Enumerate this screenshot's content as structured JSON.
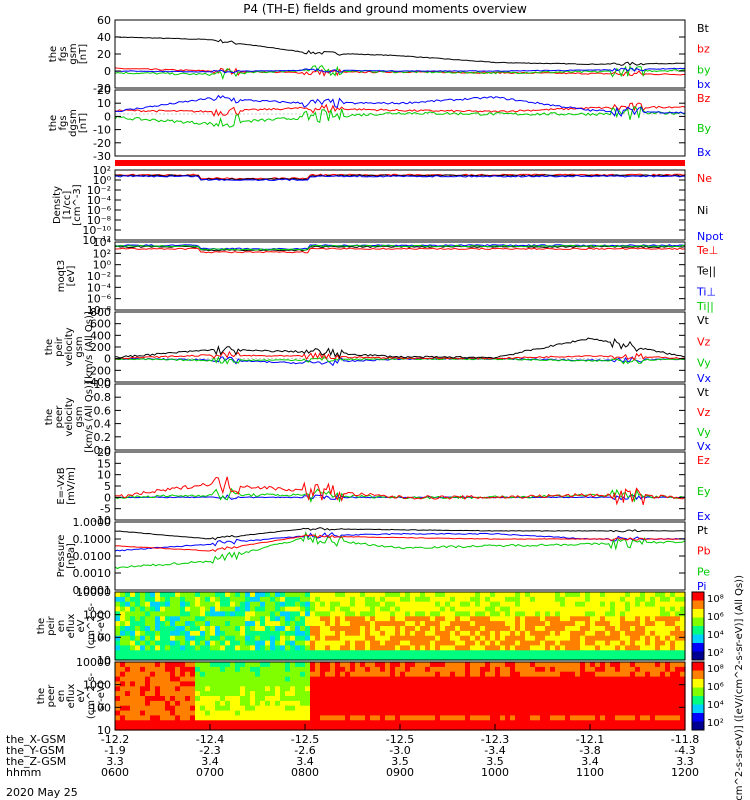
{
  "title": "P4 (TH-E) fields and ground moments overview",
  "footer": {
    "date": "2020 May 25",
    "row_labels": [
      "the_X-GSM",
      "the_Y-GSM",
      "the_Z-GSM",
      "hhmm"
    ],
    "x_columns": [
      [
        "-12.2",
        "-1.9",
        "3.3",
        "0600"
      ],
      [
        "-12.4",
        "-2.3",
        "3.4",
        "0700"
      ],
      [
        "-12.5",
        "-2.6",
        "3.4",
        "0800"
      ],
      [
        "-12.5",
        "-3.0",
        "3.5",
        "0900"
      ],
      [
        "-12.3",
        "-3.4",
        "3.5",
        "1000"
      ],
      [
        "-12.1",
        "-3.8",
        "3.4",
        "1100"
      ],
      [
        "-11.8",
        "-4.3",
        "3.3",
        "1200"
      ]
    ]
  },
  "colorbar_label": "[eV/(cm^2-s-sr-eV)] ([eV/(cm^2-s-sr-eV)] (All Qs))",
  "colorbar_ticks": [
    [
      "10⁸",
      "10⁶",
      "10⁴",
      "10²"
    ],
    [
      "10⁸",
      "10⁶",
      "10⁴",
      "10²"
    ]
  ],
  "panels": [
    {
      "ylabel": [
        "the",
        "fgs",
        "gsm",
        "[nT]"
      ],
      "ticks": [
        "60",
        "40",
        "20",
        "0",
        "-20"
      ],
      "legend": [
        {
          "text": "Bt",
          "color": "#000000"
        },
        {
          "text": "bz",
          "color": "#ff0000"
        },
        {
          "text": "by",
          "color": "#00cc00"
        },
        {
          "text": "bx",
          "color": "#0000ff"
        }
      ]
    },
    {
      "ylabel": [
        "the",
        "fgs",
        "dgsm",
        "[nT]"
      ],
      "ticks": [
        "20",
        "10",
        "0",
        "-10",
        "-20",
        "-30"
      ],
      "legend": [
        {
          "text": "Bz",
          "color": "#ff0000"
        },
        {
          "text": "By",
          "color": "#00cc00"
        },
        {
          "text": "Bx",
          "color": "#0000ff"
        }
      ]
    },
    {
      "ylabel": [
        "Density",
        "[1/cc]",
        "[cm^-3]"
      ],
      "ticks": [
        "10²",
        "10⁰",
        "10⁻²",
        "10⁻⁴",
        "10⁻⁶",
        "10⁻⁸",
        "10⁻¹⁰",
        "10⁻¹²"
      ],
      "legend": [
        {
          "text": "Ne",
          "color": "#ff0000"
        },
        {
          "text": "Ni",
          "color": "#000000"
        },
        {
          "text": "Npot",
          "color": "#0000ff"
        }
      ]
    },
    {
      "ylabel": [
        "moqt3",
        "[eV]"
      ],
      "ticks": [
        "10⁴",
        "10²",
        "10⁰",
        "10⁻²",
        "10⁻⁴",
        "10⁻⁶",
        "10⁻⁸"
      ],
      "legend": [
        {
          "text": "Te⊥",
          "color": "#ff0000"
        },
        {
          "text": "Te||",
          "color": "#000000"
        },
        {
          "text": "Ti⊥",
          "color": "#0000ff"
        },
        {
          "text": "Ti||",
          "color": "#00cc00"
        }
      ]
    },
    {
      "ylabel": [
        "the",
        "peir",
        "velocity",
        "gsm",
        "[km/s (All Qs)]"
      ],
      "ticks": [
        "800",
        "600",
        "400",
        "200",
        "0",
        "-200",
        "-400"
      ],
      "legend": [
        {
          "text": "Vt",
          "color": "#000000"
        },
        {
          "text": "Vz",
          "color": "#ff0000"
        },
        {
          "text": "Vy",
          "color": "#00cc00"
        },
        {
          "text": "Vx",
          "color": "#0000ff"
        }
      ]
    },
    {
      "ylabel": [
        "the",
        "peer",
        "velocity",
        "gsm",
        "[km/s (All Qs)]"
      ],
      "ticks": [
        "1.0",
        "0.8",
        "0.6",
        "0.4",
        "0.2",
        "0.0"
      ],
      "legend": [
        {
          "text": "Vt",
          "color": "#000000"
        },
        {
          "text": "Vz",
          "color": "#ff0000"
        },
        {
          "text": "Vy",
          "color": "#00cc00"
        },
        {
          "text": "Vx",
          "color": "#0000ff"
        }
      ]
    },
    {
      "ylabel": [
        "E=-VxB",
        "[mV/m]"
      ],
      "ticks": [
        "20",
        "15",
        "10",
        "5",
        "0",
        "-5",
        "-10"
      ],
      "legend": [
        {
          "text": "Ez",
          "color": "#ff0000"
        },
        {
          "text": "Ey",
          "color": "#00cc00"
        },
        {
          "text": "Ex",
          "color": "#0000ff"
        }
      ]
    },
    {
      "ylabel": [
        "Pressure",
        "[nPa]"
      ],
      "ticks": [
        "1.0000",
        "0.1000",
        "0.0100",
        "0.0010",
        "0.0001"
      ],
      "legend": [
        {
          "text": "Pt",
          "color": "#000000"
        },
        {
          "text": "Pb",
          "color": "#ff0000"
        },
        {
          "text": "Pe",
          "color": "#00cc00"
        },
        {
          "text": "Pi",
          "color": "#0000ff"
        }
      ]
    },
    {
      "ylabel": [
        "the",
        "peir",
        "en",
        "eflux",
        "eV",
        "(cm^2-s-",
        "sr-eV)"
      ],
      "ticks": [
        "10000",
        "1000",
        "100",
        "10"
      ],
      "legend": []
    },
    {
      "ylabel": [
        "the",
        "peer",
        "en",
        "eflux",
        "eV",
        "(cm^2-s-",
        "sr-eV)"
      ],
      "ticks": [
        "10000",
        "1000",
        "100",
        "10"
      ],
      "legend": []
    }
  ],
  "chart_data": {
    "type": "line",
    "title": "P4 (TH-E) fields and ground moments overview",
    "x": [
      "0600",
      "0700",
      "0800",
      "0900",
      "1000",
      "1100",
      "1200"
    ],
    "series": [
      {
        "name": "Bt",
        "values": [
          40,
          37,
          22,
          18,
          10,
          8,
          9
        ]
      },
      {
        "name": "bz",
        "values": [
          3,
          0,
          -2,
          -1,
          -2,
          -3,
          -4
        ]
      },
      {
        "name": "by",
        "values": [
          -2,
          -4,
          1,
          -1,
          -2,
          -1,
          1
        ]
      },
      {
        "name": "bx",
        "values": [
          0,
          -1,
          1,
          0,
          0,
          1,
          3
        ]
      },
      {
        "name": "Bz",
        "values": [
          3,
          2,
          5,
          3,
          2,
          5,
          6
        ]
      },
      {
        "name": "By",
        "values": [
          -3,
          -8,
          -3,
          1,
          0,
          0,
          1
        ]
      },
      {
        "name": "Bx",
        "values": [
          2,
          13,
          9,
          9,
          14,
          3,
          1
        ]
      },
      {
        "name": "Vt",
        "values": [
          20,
          150,
          120,
          30,
          20,
          350,
          30
        ]
      },
      {
        "name": "Vz",
        "values": [
          5,
          60,
          40,
          10,
          5,
          50,
          10
        ]
      },
      {
        "name": "Vy",
        "values": [
          -5,
          -30,
          -20,
          -5,
          -5,
          -40,
          -5
        ]
      },
      {
        "name": "Vx",
        "values": [
          0,
          -20,
          -80,
          -5,
          0,
          -30,
          -5
        ]
      },
      {
        "name": "Ez",
        "values": [
          0,
          6,
          3,
          0,
          0,
          1,
          0
        ]
      },
      {
        "name": "Ey",
        "values": [
          0,
          1,
          1,
          0,
          0,
          1,
          0
        ]
      },
      {
        "name": "Ex",
        "values": [
          0,
          0,
          0,
          0,
          0,
          0,
          0
        ]
      },
      {
        "name": "Pt",
        "values": [
          0.3,
          0.1,
          0.4,
          0.35,
          0.3,
          0.3,
          0.3
        ]
      },
      {
        "name": "Pb",
        "values": [
          0.04,
          0.02,
          0.15,
          0.12,
          0.1,
          0.1,
          0.1
        ]
      },
      {
        "name": "Pe",
        "values": [
          0.002,
          0.005,
          0.12,
          0.03,
          0.04,
          0.05,
          0.07
        ]
      },
      {
        "name": "Pi",
        "values": [
          0.02,
          0.05,
          0.15,
          0.2,
          0.2,
          0.1,
          0.1
        ]
      }
    ],
    "density": [
      {
        "name": "Ne",
        "value": 10
      },
      {
        "name": "Ni",
        "value": 10
      },
      {
        "name": "Npot",
        "value": 10
      }
    ],
    "temperature": [
      {
        "name": "Te⊥",
        "value": 1000
      },
      {
        "name": "Te||",
        "value": 1000
      },
      {
        "name": "Ti⊥",
        "value": 5000
      },
      {
        "name": "Ti||",
        "value": 5000
      }
    ],
    "spectrogram_colormap": [
      "#000090",
      "#0000ff",
      "#00d0ff",
      "#00ff80",
      "#80ff00",
      "#ffff00",
      "#ff8000",
      "#ff0000"
    ]
  }
}
